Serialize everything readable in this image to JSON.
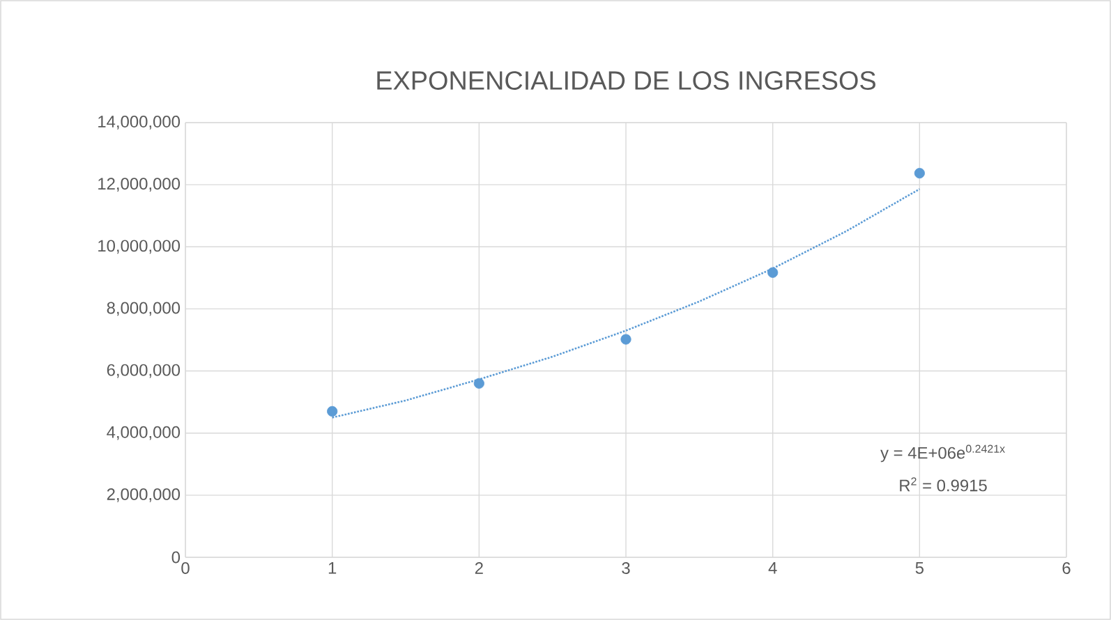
{
  "chart_data": {
    "type": "scatter",
    "title": "EXPONENCIALIDAD DE LOS INGRESOS",
    "series": [
      {
        "color": "#5b9bd5",
        "x": [
          1,
          2,
          3,
          4,
          5
        ],
        "values": [
          4700000,
          5600000,
          7020000,
          9170000,
          12370000
        ],
        "marker": "circle"
      },
      {
        "type": "line",
        "color": "#5b9bd5",
        "x": [
          1,
          1.5,
          2,
          2.5,
          3,
          3.5,
          4,
          4.5,
          5
        ],
        "values": [
          4500000,
          5050000,
          5730000,
          6460000,
          7300000,
          8240000,
          9300000,
          10500000,
          11860000
        ],
        "marker": "none",
        "line_style": "dotted"
      }
    ],
    "xlim": [
      0,
      6
    ],
    "xticks": [
      0,
      1,
      2,
      3,
      4,
      5,
      6
    ],
    "ylim": [
      0,
      14000000
    ],
    "yticks": [
      {
        "value": 0,
        "label": "0"
      },
      {
        "value": 2000000,
        "label": "2,000,000"
      },
      {
        "value": 4000000,
        "label": "4,000,000"
      },
      {
        "value": 6000000,
        "label": "6,000,000"
      },
      {
        "value": 8000000,
        "label": "8,000,000"
      },
      {
        "value": 10000000,
        "label": "10,000,000"
      },
      {
        "value": 12000000,
        "label": "12,000,000"
      },
      {
        "value": 14000000,
        "label": "14,000,000"
      }
    ],
    "grid": true,
    "annotations": [
      "y = 4E+06e$^{0.2421x}$",
      "R$^{2}$ = 0.9915"
    ]
  }
}
